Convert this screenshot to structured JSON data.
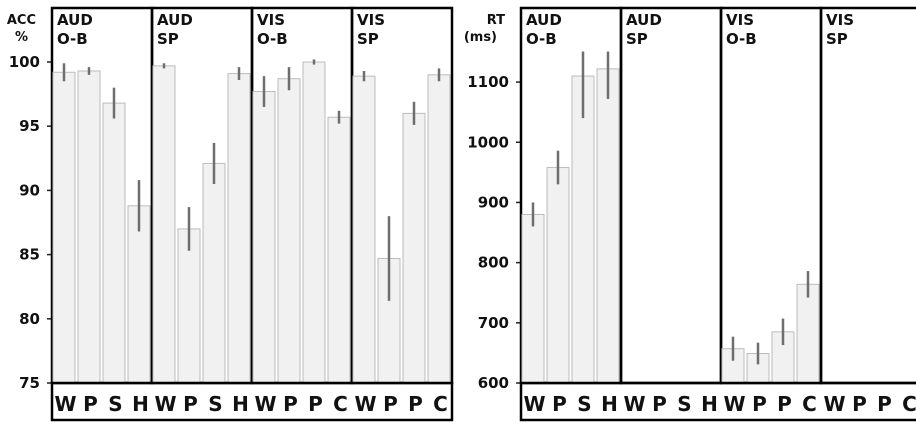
{
  "chart_data": [
    {
      "type": "bar",
      "ylabel_lines": [
        "ACC",
        "%"
      ],
      "ylim": [
        75,
        100
      ],
      "yticks": [
        75,
        80,
        85,
        90,
        95,
        100
      ],
      "grid": false,
      "panels": [
        {
          "title_lines": [
            "AUD",
            "O-B"
          ],
          "categories": [
            "W",
            "P",
            "S",
            "H"
          ],
          "values": [
            99.2,
            99.3,
            96.8,
            88.8
          ],
          "errors": [
            0.7,
            0.3,
            1.2,
            2.0
          ]
        },
        {
          "title_lines": [
            "AUD",
            "SP"
          ],
          "categories": [
            "W",
            "P",
            "S",
            "H"
          ],
          "values": [
            99.7,
            87.0,
            92.1,
            99.1
          ],
          "errors": [
            0.2,
            1.7,
            1.6,
            0.5
          ]
        },
        {
          "title_lines": [
            "VIS",
            "O-B"
          ],
          "categories": [
            "W",
            "P",
            "P",
            "C"
          ],
          "values": [
            97.7,
            98.7,
            100.0,
            95.7
          ],
          "errors": [
            1.2,
            0.9,
            0.2,
            0.5
          ]
        },
        {
          "title_lines": [
            "VIS",
            "SP"
          ],
          "categories": [
            "W",
            "P",
            "P",
            "C"
          ],
          "values": [
            98.9,
            84.7,
            96.0,
            99.0
          ],
          "errors": [
            0.4,
            3.3,
            0.9,
            0.5
          ]
        }
      ]
    },
    {
      "type": "bar",
      "ylabel_lines": [
        "RT",
        "(ms)"
      ],
      "ylim": [
        600,
        1140
      ],
      "yticks": [
        600,
        700,
        800,
        900,
        1000,
        1100
      ],
      "grid": false,
      "panels": [
        {
          "title_lines": [
            "AUD",
            "O-B"
          ],
          "categories": [
            "W",
            "P",
            "S",
            "H"
          ],
          "values": [
            880,
            958,
            1110,
            1122
          ],
          "errors": [
            20,
            28,
            70,
            50
          ]
        },
        {
          "title_lines": [
            "AUD",
            "SP"
          ],
          "categories": [
            "W",
            "P",
            "S",
            "H"
          ],
          "values": [],
          "errors": []
        },
        {
          "title_lines": [
            "VIS",
            "O-B"
          ],
          "categories": [
            "W",
            "P",
            "P",
            "C"
          ],
          "values": [
            657,
            649,
            685,
            764
          ],
          "errors": [
            20,
            18,
            22,
            22
          ]
        },
        {
          "title_lines": [
            "VIS",
            "SP"
          ],
          "categories": [
            "W",
            "P",
            "P",
            "C"
          ],
          "values": [],
          "errors": []
        }
      ]
    }
  ]
}
